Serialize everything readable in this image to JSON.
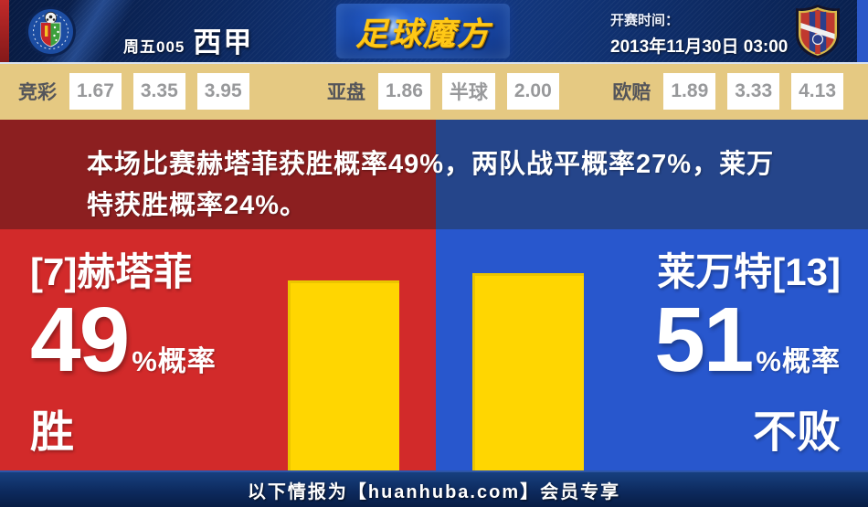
{
  "header": {
    "match_label": "周五005",
    "league": "西甲",
    "brand_logo_text": "足球魔方",
    "kickoff_label": "开赛时间：",
    "kickoff_time": "2013年11月30日 03:00",
    "home_crest": "getafe-crest",
    "away_crest": "levante-crest"
  },
  "odds": {
    "jingcai": {
      "label": "竞彩",
      "values": [
        "1.67",
        "3.35",
        "3.95"
      ]
    },
    "yapan": {
      "label": "亚盘",
      "values": [
        "1.86",
        "半球",
        "2.00"
      ]
    },
    "oupei": {
      "label": "欧赔",
      "values": [
        "1.89",
        "3.33",
        "4.13"
      ]
    }
  },
  "banner": {
    "full_text": "本场比赛赫塔菲获胜概率49%，两队战平概率27%，莱万特获胜概率24%。",
    "line1": "本场比赛赫塔菲获胜概率49%，两队战平概率27%，莱万",
    "line2": "特获胜概率24%。"
  },
  "matchup": {
    "home": {
      "name": "[7]赫塔菲",
      "percent": "49",
      "percent_suffix": "%概率",
      "outcome": "胜",
      "probability_percent": 49
    },
    "away": {
      "name": "莱万特[13]",
      "percent": "51",
      "percent_suffix": "%概率",
      "outcome": "不败",
      "probability_percent": 51
    }
  },
  "probabilities": {
    "home_win": 49,
    "draw": 27,
    "away_win": 24,
    "away_unbeaten": 51
  },
  "footer": {
    "text": "以下情报为【huanhuba.com】会员专享"
  },
  "colors": {
    "accent_yellow_bar": "#ffd601",
    "home_red": "#d22a2a",
    "away_blue": "#2857cd",
    "banner_dark_red": "#8c1f20",
    "banner_dark_blue": "#25458a",
    "odds_bar_bg": "#e5c982",
    "brand_gold": "#ffc816",
    "footer_navy": "#0d2a5e"
  }
}
